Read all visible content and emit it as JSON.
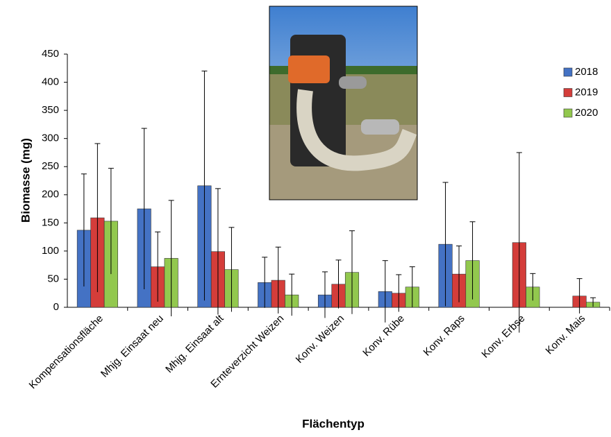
{
  "chart_data": {
    "type": "bar",
    "x_label": "Flächentyp",
    "y_label": "Biomasse (mg)",
    "categories": [
      "Kompensationsfläche",
      "Mhjg. Einsaat neu",
      "Mhjg. Einsaat alt",
      "Ernteverzicht Weizen",
      "Konv. Weizen",
      "Konv. Rübe",
      "Konv. Raps",
      "Konv. Erbse",
      "Konv. Mais"
    ],
    "series": [
      {
        "name": "2018",
        "color": "#4472c4",
        "values": [
          137,
          175,
          216,
          44,
          22,
          28,
          112,
          null,
          null
        ],
        "errors": [
          100,
          143,
          204,
          45,
          41,
          55,
          110,
          null,
          null
        ]
      },
      {
        "name": "2019",
        "color": "#d43d3a",
        "values": [
          159,
          72,
          99,
          48,
          41,
          25,
          59,
          115,
          20
        ],
        "errors": [
          132,
          62,
          112,
          59,
          43,
          33,
          50,
          160,
          31
        ]
      },
      {
        "name": "2020",
        "color": "#92c84e",
        "values": [
          153,
          87,
          67,
          22,
          62,
          36,
          83,
          36,
          9
        ],
        "errors": [
          94,
          103,
          75,
          37,
          74,
          36,
          69,
          24,
          8
        ]
      }
    ],
    "ylim": [
      0,
      450
    ],
    "yticks": [
      0,
      50,
      100,
      150,
      200,
      250,
      300,
      350,
      400,
      450
    ],
    "legend": "upper right",
    "grid": false
  }
}
